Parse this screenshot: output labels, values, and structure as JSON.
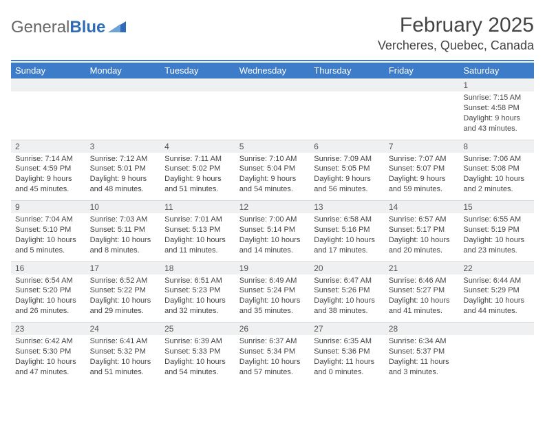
{
  "brand": {
    "part1": "General",
    "part2": "Blue"
  },
  "title": "February 2025",
  "location": "Vercheres, Quebec, Canada",
  "colors": {
    "header_bg": "#3d7cc9",
    "header_text": "#ffffff",
    "daynum_bg": "#eef0f1",
    "rule": "#3d7cc9",
    "text": "#444444"
  },
  "weekdays": [
    "Sunday",
    "Monday",
    "Tuesday",
    "Wednesday",
    "Thursday",
    "Friday",
    "Saturday"
  ],
  "weeks": [
    [
      null,
      null,
      null,
      null,
      null,
      null,
      {
        "n": "1",
        "sunrise": "Sunrise: 7:15 AM",
        "sunset": "Sunset: 4:58 PM",
        "day1": "Daylight: 9 hours",
        "day2": "and 43 minutes."
      }
    ],
    [
      {
        "n": "2",
        "sunrise": "Sunrise: 7:14 AM",
        "sunset": "Sunset: 4:59 PM",
        "day1": "Daylight: 9 hours",
        "day2": "and 45 minutes."
      },
      {
        "n": "3",
        "sunrise": "Sunrise: 7:12 AM",
        "sunset": "Sunset: 5:01 PM",
        "day1": "Daylight: 9 hours",
        "day2": "and 48 minutes."
      },
      {
        "n": "4",
        "sunrise": "Sunrise: 7:11 AM",
        "sunset": "Sunset: 5:02 PM",
        "day1": "Daylight: 9 hours",
        "day2": "and 51 minutes."
      },
      {
        "n": "5",
        "sunrise": "Sunrise: 7:10 AM",
        "sunset": "Sunset: 5:04 PM",
        "day1": "Daylight: 9 hours",
        "day2": "and 54 minutes."
      },
      {
        "n": "6",
        "sunrise": "Sunrise: 7:09 AM",
        "sunset": "Sunset: 5:05 PM",
        "day1": "Daylight: 9 hours",
        "day2": "and 56 minutes."
      },
      {
        "n": "7",
        "sunrise": "Sunrise: 7:07 AM",
        "sunset": "Sunset: 5:07 PM",
        "day1": "Daylight: 9 hours",
        "day2": "and 59 minutes."
      },
      {
        "n": "8",
        "sunrise": "Sunrise: 7:06 AM",
        "sunset": "Sunset: 5:08 PM",
        "day1": "Daylight: 10 hours",
        "day2": "and 2 minutes."
      }
    ],
    [
      {
        "n": "9",
        "sunrise": "Sunrise: 7:04 AM",
        "sunset": "Sunset: 5:10 PM",
        "day1": "Daylight: 10 hours",
        "day2": "and 5 minutes."
      },
      {
        "n": "10",
        "sunrise": "Sunrise: 7:03 AM",
        "sunset": "Sunset: 5:11 PM",
        "day1": "Daylight: 10 hours",
        "day2": "and 8 minutes."
      },
      {
        "n": "11",
        "sunrise": "Sunrise: 7:01 AM",
        "sunset": "Sunset: 5:13 PM",
        "day1": "Daylight: 10 hours",
        "day2": "and 11 minutes."
      },
      {
        "n": "12",
        "sunrise": "Sunrise: 7:00 AM",
        "sunset": "Sunset: 5:14 PM",
        "day1": "Daylight: 10 hours",
        "day2": "and 14 minutes."
      },
      {
        "n": "13",
        "sunrise": "Sunrise: 6:58 AM",
        "sunset": "Sunset: 5:16 PM",
        "day1": "Daylight: 10 hours",
        "day2": "and 17 minutes."
      },
      {
        "n": "14",
        "sunrise": "Sunrise: 6:57 AM",
        "sunset": "Sunset: 5:17 PM",
        "day1": "Daylight: 10 hours",
        "day2": "and 20 minutes."
      },
      {
        "n": "15",
        "sunrise": "Sunrise: 6:55 AM",
        "sunset": "Sunset: 5:19 PM",
        "day1": "Daylight: 10 hours",
        "day2": "and 23 minutes."
      }
    ],
    [
      {
        "n": "16",
        "sunrise": "Sunrise: 6:54 AM",
        "sunset": "Sunset: 5:20 PM",
        "day1": "Daylight: 10 hours",
        "day2": "and 26 minutes."
      },
      {
        "n": "17",
        "sunrise": "Sunrise: 6:52 AM",
        "sunset": "Sunset: 5:22 PM",
        "day1": "Daylight: 10 hours",
        "day2": "and 29 minutes."
      },
      {
        "n": "18",
        "sunrise": "Sunrise: 6:51 AM",
        "sunset": "Sunset: 5:23 PM",
        "day1": "Daylight: 10 hours",
        "day2": "and 32 minutes."
      },
      {
        "n": "19",
        "sunrise": "Sunrise: 6:49 AM",
        "sunset": "Sunset: 5:24 PM",
        "day1": "Daylight: 10 hours",
        "day2": "and 35 minutes."
      },
      {
        "n": "20",
        "sunrise": "Sunrise: 6:47 AM",
        "sunset": "Sunset: 5:26 PM",
        "day1": "Daylight: 10 hours",
        "day2": "and 38 minutes."
      },
      {
        "n": "21",
        "sunrise": "Sunrise: 6:46 AM",
        "sunset": "Sunset: 5:27 PM",
        "day1": "Daylight: 10 hours",
        "day2": "and 41 minutes."
      },
      {
        "n": "22",
        "sunrise": "Sunrise: 6:44 AM",
        "sunset": "Sunset: 5:29 PM",
        "day1": "Daylight: 10 hours",
        "day2": "and 44 minutes."
      }
    ],
    [
      {
        "n": "23",
        "sunrise": "Sunrise: 6:42 AM",
        "sunset": "Sunset: 5:30 PM",
        "day1": "Daylight: 10 hours",
        "day2": "and 47 minutes."
      },
      {
        "n": "24",
        "sunrise": "Sunrise: 6:41 AM",
        "sunset": "Sunset: 5:32 PM",
        "day1": "Daylight: 10 hours",
        "day2": "and 51 minutes."
      },
      {
        "n": "25",
        "sunrise": "Sunrise: 6:39 AM",
        "sunset": "Sunset: 5:33 PM",
        "day1": "Daylight: 10 hours",
        "day2": "and 54 minutes."
      },
      {
        "n": "26",
        "sunrise": "Sunrise: 6:37 AM",
        "sunset": "Sunset: 5:34 PM",
        "day1": "Daylight: 10 hours",
        "day2": "and 57 minutes."
      },
      {
        "n": "27",
        "sunrise": "Sunrise: 6:35 AM",
        "sunset": "Sunset: 5:36 PM",
        "day1": "Daylight: 11 hours",
        "day2": "and 0 minutes."
      },
      {
        "n": "28",
        "sunrise": "Sunrise: 6:34 AM",
        "sunset": "Sunset: 5:37 PM",
        "day1": "Daylight: 11 hours",
        "day2": "and 3 minutes."
      },
      null
    ]
  ]
}
